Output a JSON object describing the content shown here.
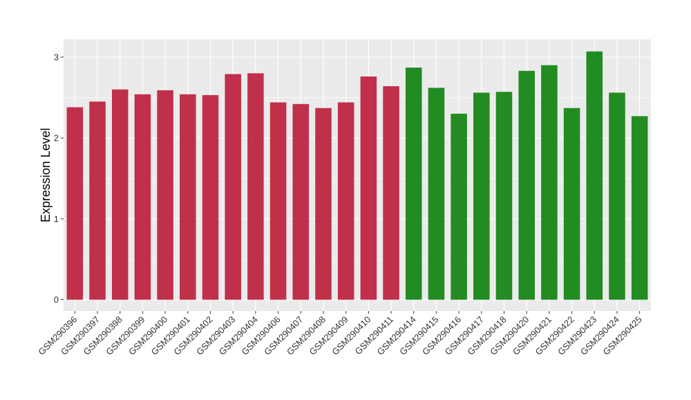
{
  "chart_data": {
    "type": "bar",
    "title": "",
    "xlabel": "",
    "ylabel": "Expression Level",
    "ylim": [
      -0.14,
      3.22
    ],
    "yticks": [
      0,
      1,
      2,
      3
    ],
    "grid": true,
    "legend": "none",
    "categories": [
      "GSM290396",
      "GSM290397",
      "GSM290398",
      "GSM290399",
      "GSM290400",
      "GSM290401",
      "GSM290402",
      "GSM290403",
      "GSM290404",
      "GSM290406",
      "GSM290407",
      "GSM290408",
      "GSM290409",
      "GSM290410",
      "GSM290411",
      "GSM290414",
      "GSM290415",
      "GSM290416",
      "GSM290417",
      "GSM290418",
      "GSM290420",
      "GSM290421",
      "GSM290422",
      "GSM290423",
      "GSM290424",
      "GSM290425"
    ],
    "values": [
      2.38,
      2.45,
      2.6,
      2.54,
      2.59,
      2.54,
      2.53,
      2.79,
      2.8,
      2.44,
      2.42,
      2.37,
      2.44,
      2.76,
      2.64,
      2.87,
      2.62,
      2.3,
      2.56,
      2.57,
      2.83,
      2.9,
      2.37,
      3.07,
      2.56,
      2.27
    ],
    "bar_colors": [
      "#C0304A",
      "#C0304A",
      "#C0304A",
      "#C0304A",
      "#C0304A",
      "#C0304A",
      "#C0304A",
      "#C0304A",
      "#C0304A",
      "#C0304A",
      "#C0304A",
      "#C0304A",
      "#C0304A",
      "#C0304A",
      "#C0304A",
      "#228B22",
      "#228B22",
      "#228B22",
      "#228B22",
      "#228B22",
      "#228B22",
      "#228B22",
      "#228B22",
      "#228B22",
      "#228B22",
      "#228B22"
    ],
    "panel_background": "#EBEBEB",
    "grid_color": "#FFFFFF"
  }
}
